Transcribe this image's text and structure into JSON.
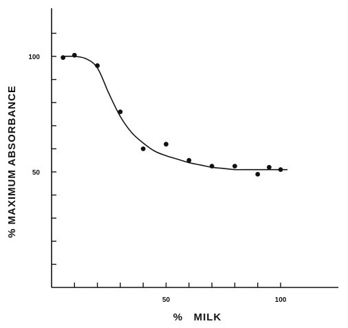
{
  "chart_data": {
    "type": "scatter",
    "title": "",
    "xlabel": "%   MILK",
    "ylabel": "% MAXIMUM ABSORBANCE",
    "xlim": [
      0,
      125
    ],
    "ylim": [
      0,
      120
    ],
    "x_ticks": [
      50,
      100
    ],
    "x_tick_labels": [
      "50",
      "100"
    ],
    "y_ticks": [
      50,
      100
    ],
    "y_tick_labels": [
      "50",
      "100"
    ],
    "y_minor_ticks": [
      10,
      20,
      30,
      40,
      60,
      70,
      80,
      90,
      110
    ],
    "x_minor_ticks": [
      10,
      20,
      30,
      40,
      60,
      70,
      80,
      90
    ],
    "grid": false,
    "legend": "none",
    "series": [
      {
        "marker": "dot",
        "x": [
          5,
          10,
          20,
          30,
          40,
          50,
          60,
          70,
          80,
          90,
          95,
          100
        ],
        "y": [
          99.5,
          100.5,
          96,
          76,
          60,
          62,
          55,
          52.5,
          52.5,
          49,
          52,
          51
        ]
      }
    ],
    "fit_curve": {
      "x": [
        5,
        10,
        15,
        20,
        25,
        30,
        35,
        40,
        45,
        50,
        55,
        60,
        65,
        70,
        75,
        80,
        85,
        90,
        95,
        100,
        103
      ],
      "y": [
        100,
        100,
        99,
        95,
        84,
        74,
        67,
        62.5,
        59,
        57,
        55.5,
        54,
        53,
        52,
        51.5,
        51,
        51,
        51,
        51,
        51,
        51
      ]
    },
    "colors": {
      "ink": "#111111",
      "background": "#ffffff"
    }
  }
}
